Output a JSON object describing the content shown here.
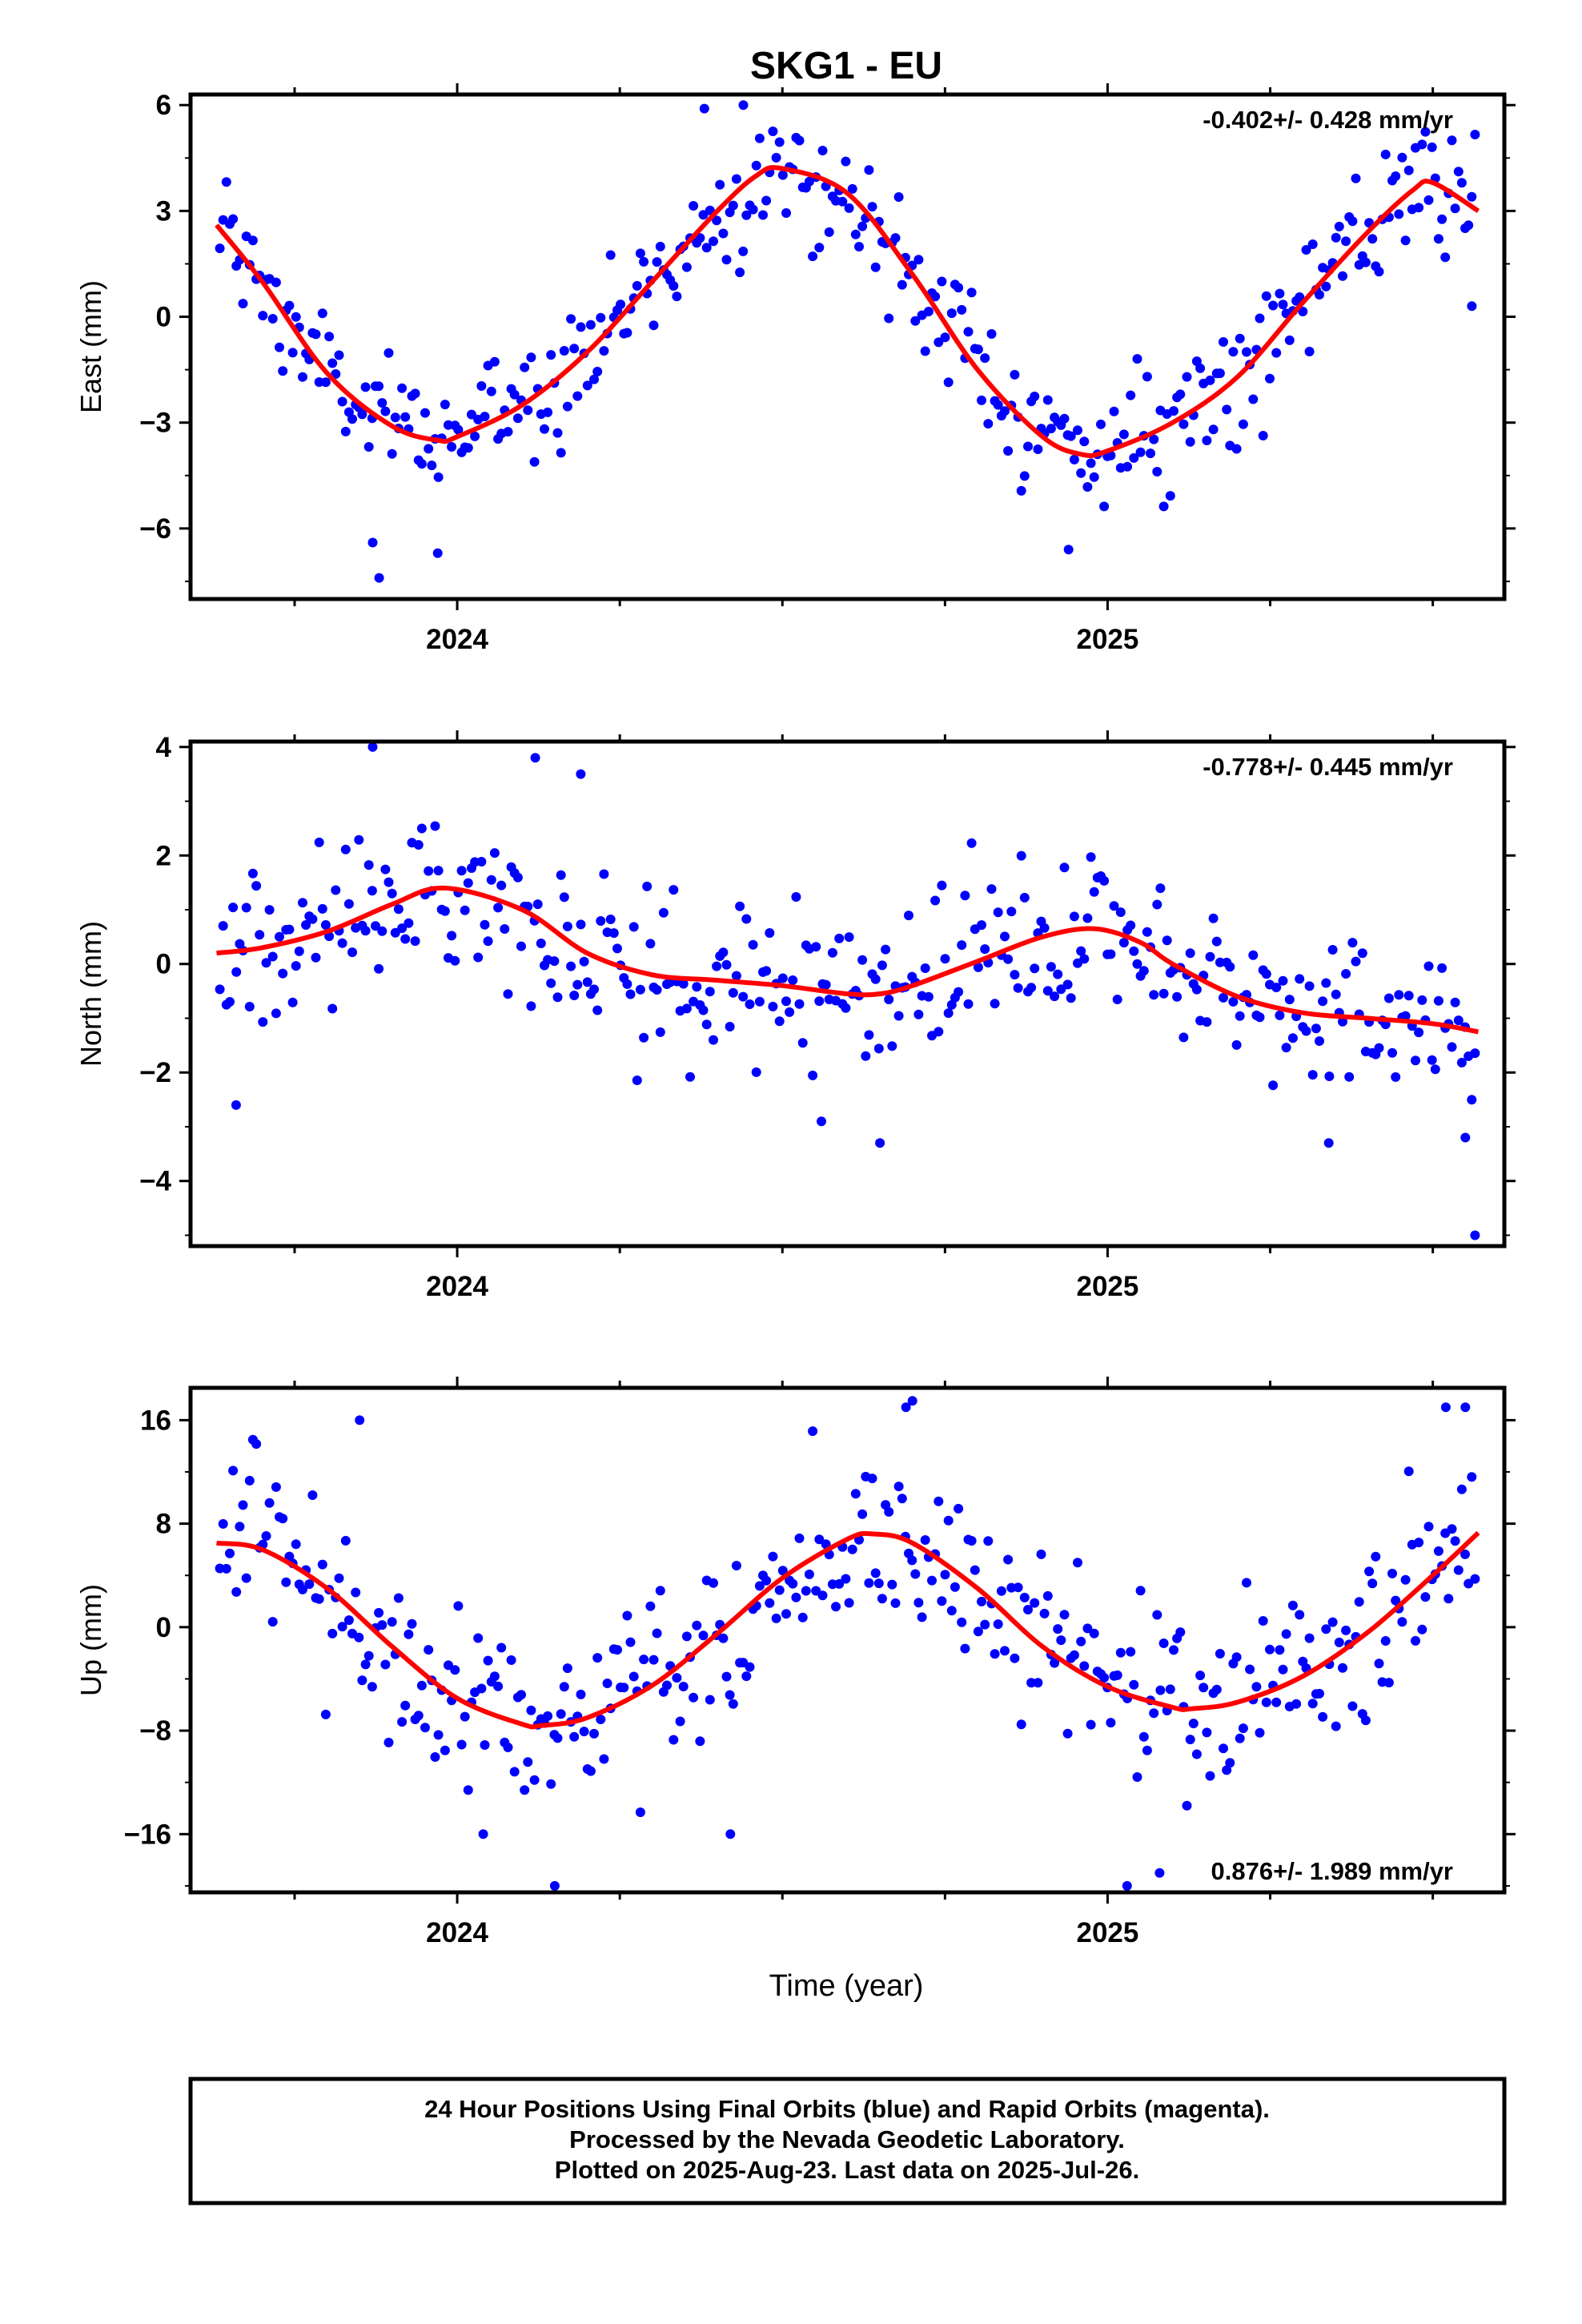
{
  "figure": {
    "title": "SKG1 - EU",
    "xlabel": "Time (year)",
    "footer": [
      "24 Hour Positions Using Final Orbits (blue) and Rapid Orbits (magenta).",
      "Processed by the Nevada Geodetic Laboratory.",
      "Plotted on 2025-Aug-23. Last data on 2025-Jul-26."
    ]
  },
  "colors": {
    "points": "#0000ff",
    "fit": "#ff0000",
    "frame": "#000000"
  },
  "chart_data": [
    {
      "type": "scatter",
      "name": "east",
      "ylabel": "East (mm)",
      "rate_text": "-0.402+/- 0.428 mm/yr",
      "xlim": [
        2023.59,
        2025.61
      ],
      "ylim": [
        -8,
        6.3
      ],
      "yticks": [
        -6,
        -3,
        0,
        3,
        6
      ],
      "yticklabels": [
        "−6",
        "−3",
        "0",
        "3",
        "6"
      ],
      "xticks": [
        2024,
        2025
      ],
      "xticklabels": [
        "2024",
        "2025"
      ],
      "fit_curve": {
        "x": [
          2023.63,
          2023.7,
          2023.8,
          2023.9,
          2023.97,
          2024.0,
          2024.1,
          2024.2,
          2024.3,
          2024.4,
          2024.46,
          2024.5,
          2024.6,
          2024.7,
          2024.8,
          2024.9,
          2024.96,
          2025.0,
          2025.1,
          2025.2,
          2025.3,
          2025.4,
          2025.47,
          2025.5,
          2025.57
        ],
        "y": [
          2.6,
          1.0,
          -1.6,
          -3.1,
          -3.5,
          -3.4,
          -2.5,
          -1.0,
          1.0,
          3.0,
          4.0,
          4.2,
          3.5,
          1.2,
          -1.5,
          -3.4,
          -3.9,
          -3.8,
          -3.0,
          -1.7,
          0.4,
          2.4,
          3.6,
          3.8,
          3.0
        ]
      },
      "points": {
        "x_start": 2023.635,
        "x_end": 2025.565,
        "n": 380,
        "trend": [
          2023.635,
          2.5,
          2023.75,
          -0.5,
          2023.87,
          -3.0,
          2023.96,
          -3.4,
          2024.1,
          -2.5,
          2024.25,
          0.0,
          2024.4,
          3.0,
          2024.48,
          4.2,
          2024.6,
          3.4,
          2024.7,
          1.2,
          2024.85,
          -2.5,
          2024.96,
          -3.9,
          2025.05,
          -3.5,
          2025.15,
          -2.3,
          2025.3,
          0.4,
          2025.45,
          3.2,
          2025.5,
          3.8,
          2025.565,
          3.0
        ],
        "scatter": 0.85,
        "outliers": [
          [
            2023.88,
            -7.4
          ],
          [
            2023.87,
            -6.4
          ],
          [
            2023.97,
            -6.7
          ],
          [
            2024.94,
            -6.6
          ],
          [
            2025.56,
            0.3
          ],
          [
            2024.44,
            6.0
          ],
          [
            2024.38,
            5.9
          ]
        ]
      }
    },
    {
      "type": "scatter",
      "name": "north",
      "ylabel": "North (mm)",
      "rate_text": "-0.778+/- 0.445 mm/yr",
      "xlim": [
        2023.59,
        2025.61
      ],
      "ylim": [
        -5.2,
        4.1
      ],
      "yticks": [
        -4,
        -2,
        0,
        2,
        4
      ],
      "yticklabels": [
        "−4",
        "−2",
        "0",
        "2",
        "4"
      ],
      "xticks": [
        2024,
        2025
      ],
      "xticklabels": [
        "2024",
        "2025"
      ],
      "fit_curve": {
        "x": [
          2023.63,
          2023.7,
          2023.8,
          2023.9,
          2023.98,
          2024.1,
          2024.2,
          2024.3,
          2024.4,
          2024.5,
          2024.6,
          2024.65,
          2024.7,
          2024.8,
          2024.9,
          2024.98,
          2025.05,
          2025.1,
          2025.2,
          2025.3,
          2025.4,
          2025.5,
          2025.57
        ],
        "y": [
          0.2,
          0.3,
          0.6,
          1.1,
          1.4,
          1.0,
          0.2,
          -0.2,
          -0.3,
          -0.4,
          -0.55,
          -0.55,
          -0.4,
          0.05,
          0.5,
          0.65,
          0.4,
          0.0,
          -0.6,
          -0.9,
          -1.0,
          -1.1,
          -1.25
        ]
      },
      "points": {
        "x_start": 2023.635,
        "x_end": 2025.565,
        "n": 380,
        "trend": [
          2023.635,
          0.2,
          2023.75,
          0.4,
          2023.85,
          1.0,
          2023.98,
          1.4,
          2024.1,
          1.0,
          2024.2,
          0.2,
          2024.3,
          -0.2,
          2024.5,
          -0.4,
          2024.65,
          -0.55,
          2024.8,
          0.05,
          2024.98,
          0.65,
          2025.1,
          0.0,
          2025.25,
          -0.8,
          2025.4,
          -1.0,
          2025.565,
          -1.25
        ],
        "scatter": 0.7,
        "outliers": [
          [
            2023.87,
            4.0
          ],
          [
            2024.12,
            3.8
          ],
          [
            2024.19,
            3.5
          ],
          [
            2024.65,
            -3.3
          ],
          [
            2024.56,
            -2.9
          ],
          [
            2025.34,
            -3.3
          ],
          [
            2025.55,
            -3.2
          ],
          [
            2025.565,
            -5.0
          ],
          [
            2023.66,
            -2.6
          ]
        ]
      }
    },
    {
      "type": "scatter",
      "name": "up",
      "ylabel": "Up (mm)",
      "rate_text": "0.876+/- 1.989 mm/yr",
      "xlim": [
        2023.59,
        2025.61
      ],
      "ylim": [
        -20.5,
        18.5
      ],
      "yticks": [
        -16,
        -8,
        0,
        8,
        16
      ],
      "yticklabels": [
        "−16",
        "−8",
        "0",
        "8",
        "16"
      ],
      "xticks": [
        2024,
        2025
      ],
      "xticklabels": [
        "2024",
        "2025"
      ],
      "fit_curve": {
        "x": [
          2023.63,
          2023.7,
          2023.8,
          2023.9,
          2024.0,
          2024.1,
          2024.13,
          2024.2,
          2024.3,
          2024.4,
          2024.5,
          2024.6,
          2024.64,
          2024.7,
          2024.8,
          2024.9,
          2025.0,
          2025.1,
          2025.13,
          2025.2,
          2025.3,
          2025.4,
          2025.5,
          2025.57
        ],
        "y": [
          6.5,
          6.0,
          3.0,
          -1.5,
          -5.5,
          -7.5,
          -7.6,
          -7.0,
          -4.5,
          -0.5,
          3.8,
          6.8,
          7.2,
          6.5,
          3.0,
          -1.5,
          -4.6,
          -6.2,
          -6.3,
          -5.8,
          -3.8,
          -0.4,
          4.0,
          7.3
        ]
      },
      "points": {
        "x_start": 2023.635,
        "x_end": 2025.565,
        "n": 380,
        "trend": [
          2023.635,
          6.5,
          2023.75,
          5.0,
          2023.9,
          -1.5,
          2024.0,
          -5.5,
          2024.13,
          -7.6,
          2024.3,
          -4.5,
          2024.45,
          1.5,
          2024.64,
          7.2,
          2024.8,
          3.0,
          2024.95,
          -3.0,
          2025.13,
          -6.3,
          2025.3,
          -3.8,
          2025.45,
          1.8,
          2025.565,
          7.3
        ],
        "scatter": 3.6,
        "outliers": [
          [
            2024.15,
            -20.0
          ],
          [
            2024.04,
            -16.0
          ],
          [
            2025.08,
            -19.0
          ],
          [
            2025.03,
            -20.0
          ],
          [
            2025.52,
            17.0
          ],
          [
            2025.55,
            17.0
          ],
          [
            2024.69,
            17.0
          ],
          [
            2024.7,
            17.5
          ],
          [
            2023.85,
            16.0
          ],
          [
            2024.42,
            -16.0
          ]
        ]
      }
    }
  ]
}
